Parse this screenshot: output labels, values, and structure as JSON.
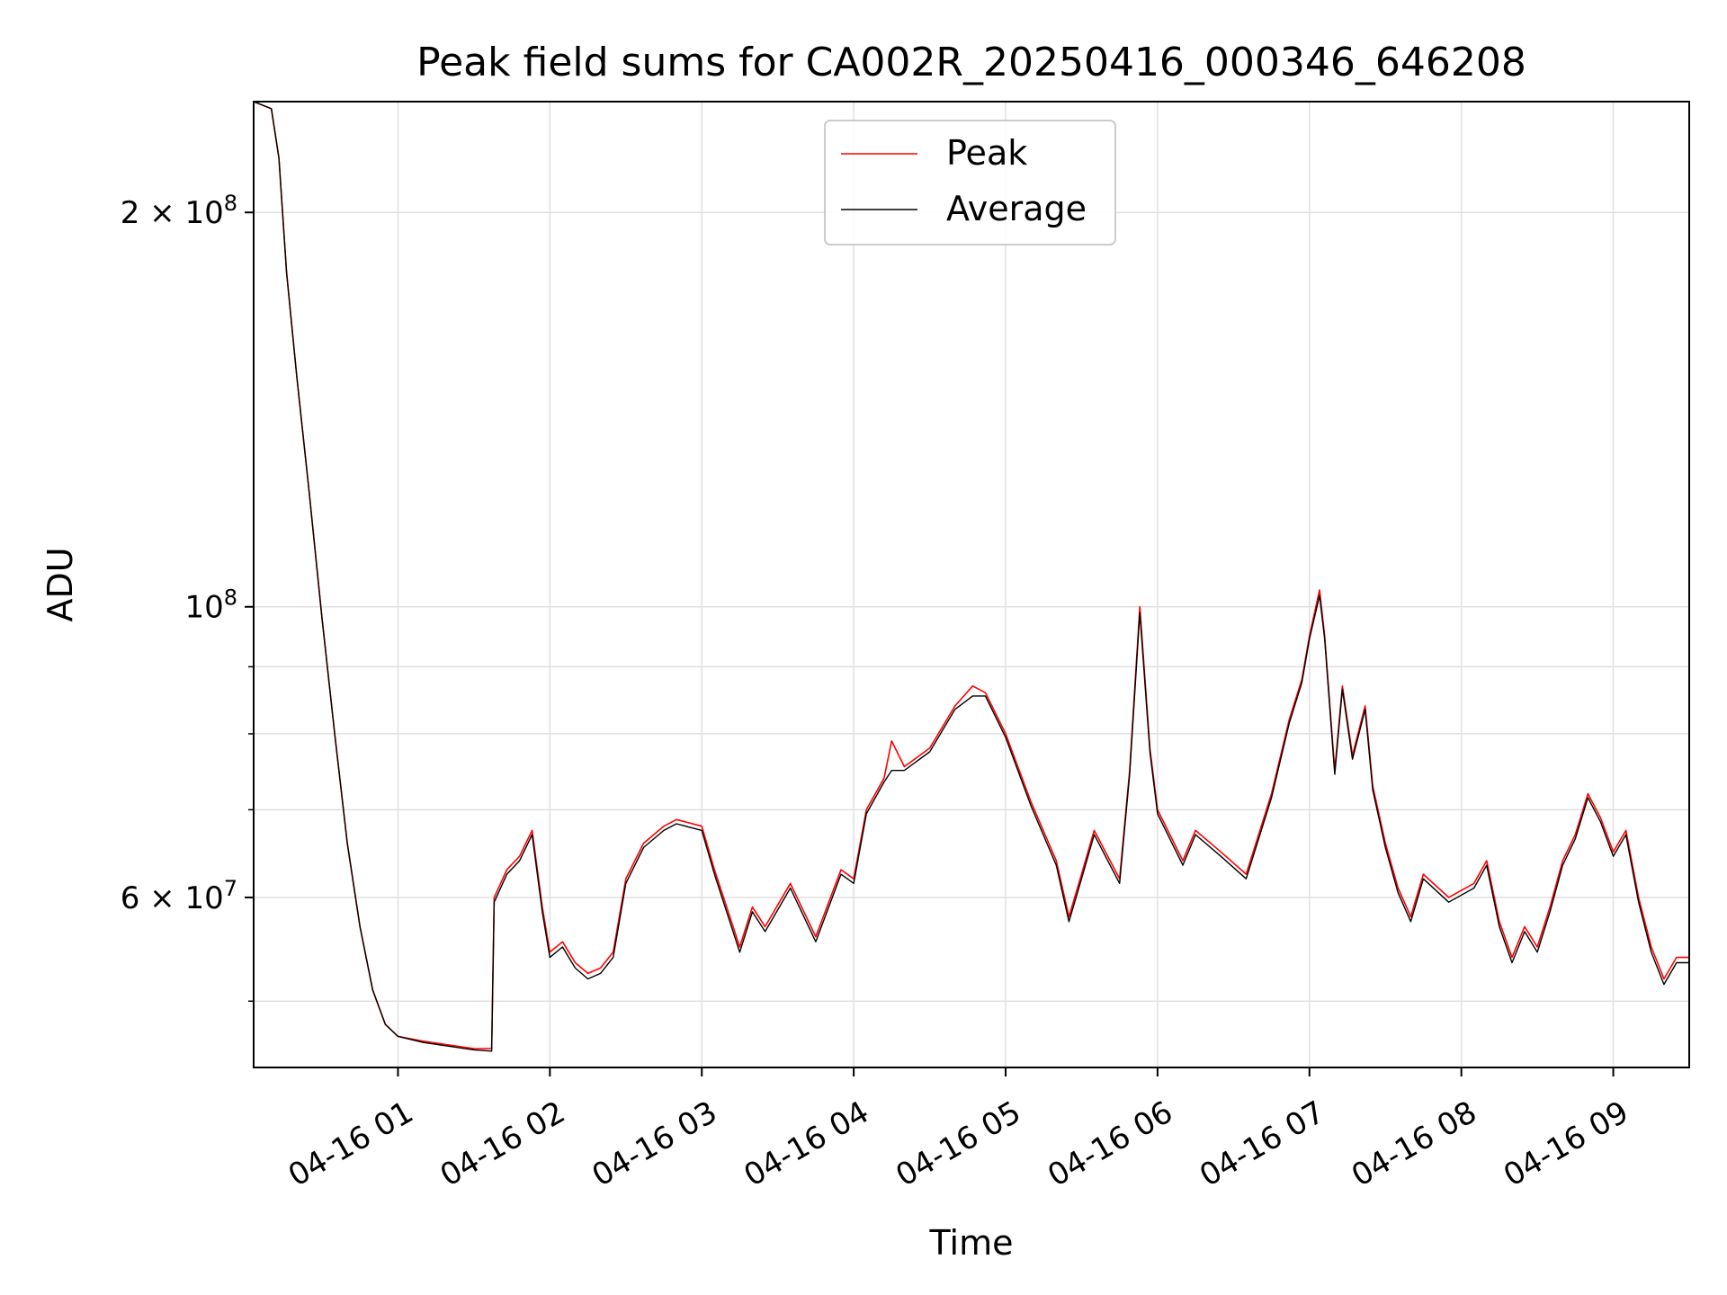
{
  "chart_data": {
    "type": "line",
    "title": "Peak field sums for CA002R_20250416_000346_646208",
    "xlabel": "Time",
    "ylabel": "ADU",
    "yscale": "log",
    "grid": true,
    "legend_position": "upper center",
    "xlim": [
      "2025-04-16 00:03",
      "2025-04-16 09:30"
    ],
    "ylim": [
      44500000,
      243000000
    ],
    "x_ticks": [
      {
        "label": "04-16 01",
        "value": "2025-04-16 01:00"
      },
      {
        "label": "04-16 02",
        "value": "2025-04-16 02:00"
      },
      {
        "label": "04-16 03",
        "value": "2025-04-16 03:00"
      },
      {
        "label": "04-16 04",
        "value": "2025-04-16 04:00"
      },
      {
        "label": "04-16 05",
        "value": "2025-04-16 05:00"
      },
      {
        "label": "04-16 06",
        "value": "2025-04-16 06:00"
      },
      {
        "label": "04-16 07",
        "value": "2025-04-16 07:00"
      },
      {
        "label": "04-16 08",
        "value": "2025-04-16 08:00"
      },
      {
        "label": "04-16 09",
        "value": "2025-04-16 09:00"
      }
    ],
    "y_ticks_major": [
      {
        "value": 60000000,
        "base": "6",
        "exp": "7"
      },
      {
        "value": 100000000,
        "base": "",
        "exp": "8"
      },
      {
        "value": 200000000,
        "base": "2",
        "exp": "8"
      }
    ],
    "y_ticks_minor": [
      50000000,
      70000000,
      80000000,
      90000000
    ],
    "colors": {
      "peak": "#ff0000",
      "average": "#000000",
      "grid": "#e0e0e0"
    },
    "series": [
      {
        "name": "Peak",
        "color": "#ff0000",
        "points": [
          [
            "2025-04-16 00:03",
            243000000
          ],
          [
            "2025-04-16 00:10",
            240000000
          ],
          [
            "2025-04-16 00:13",
            220000000
          ],
          [
            "2025-04-16 00:16",
            180000000
          ],
          [
            "2025-04-16 00:20",
            150000000
          ],
          [
            "2025-04-16 00:25",
            122000000
          ],
          [
            "2025-04-16 00:30",
            98000000
          ],
          [
            "2025-04-16 00:35",
            80000000
          ],
          [
            "2025-04-16 00:40",
            66000000
          ],
          [
            "2025-04-16 00:45",
            57000000
          ],
          [
            "2025-04-16 00:50",
            51000000
          ],
          [
            "2025-04-16 00:55",
            48000000
          ],
          [
            "2025-04-16 01:00",
            47000000
          ],
          [
            "2025-04-16 01:10",
            46600000
          ],
          [
            "2025-04-16 01:20",
            46300000
          ],
          [
            "2025-04-16 01:30",
            46000000
          ],
          [
            "2025-04-16 01:37",
            46000000
          ],
          [
            "2025-04-16 01:38",
            60000000
          ],
          [
            "2025-04-16 01:43",
            63000000
          ],
          [
            "2025-04-16 01:48",
            64500000
          ],
          [
            "2025-04-16 01:53",
            67500000
          ],
          [
            "2025-04-16 01:57",
            59000000
          ],
          [
            "2025-04-16 02:00",
            54500000
          ],
          [
            "2025-04-16 02:05",
            55500000
          ],
          [
            "2025-04-16 02:10",
            53500000
          ],
          [
            "2025-04-16 02:15",
            52500000
          ],
          [
            "2025-04-16 02:20",
            53000000
          ],
          [
            "2025-04-16 02:25",
            54500000
          ],
          [
            "2025-04-16 02:30",
            62000000
          ],
          [
            "2025-04-16 02:37",
            66000000
          ],
          [
            "2025-04-16 02:45",
            68000000
          ],
          [
            "2025-04-16 02:50",
            68800000
          ],
          [
            "2025-04-16 03:00",
            68000000
          ],
          [
            "2025-04-16 03:05",
            63000000
          ],
          [
            "2025-04-16 03:15",
            55000000
          ],
          [
            "2025-04-16 03:20",
            59000000
          ],
          [
            "2025-04-16 03:25",
            57000000
          ],
          [
            "2025-04-16 03:35",
            61500000
          ],
          [
            "2025-04-16 03:45",
            56000000
          ],
          [
            "2025-04-16 03:55",
            63000000
          ],
          [
            "2025-04-16 04:00",
            62000000
          ],
          [
            "2025-04-16 04:05",
            70000000
          ],
          [
            "2025-04-16 04:12",
            74000000
          ],
          [
            "2025-04-16 04:15",
            79000000
          ],
          [
            "2025-04-16 04:20",
            75500000
          ],
          [
            "2025-04-16 04:30",
            78000000
          ],
          [
            "2025-04-16 04:40",
            84000000
          ],
          [
            "2025-04-16 04:47",
            87000000
          ],
          [
            "2025-04-16 04:52",
            86000000
          ],
          [
            "2025-04-16 05:00",
            80000000
          ],
          [
            "2025-04-16 05:10",
            71000000
          ],
          [
            "2025-04-16 05:20",
            64000000
          ],
          [
            "2025-04-16 05:25",
            58000000
          ],
          [
            "2025-04-16 05:30",
            62500000
          ],
          [
            "2025-04-16 05:35",
            67500000
          ],
          [
            "2025-04-16 05:45",
            62000000
          ],
          [
            "2025-04-16 05:49",
            75000000
          ],
          [
            "2025-04-16 05:53",
            100000000
          ],
          [
            "2025-04-16 05:57",
            78000000
          ],
          [
            "2025-04-16 06:00",
            70000000
          ],
          [
            "2025-04-16 06:10",
            64000000
          ],
          [
            "2025-04-16 06:15",
            67500000
          ],
          [
            "2025-04-16 06:25",
            65000000
          ],
          [
            "2025-04-16 06:35",
            62500000
          ],
          [
            "2025-04-16 06:45",
            72000000
          ],
          [
            "2025-04-16 06:52",
            82000000
          ],
          [
            "2025-04-16 06:57",
            88000000
          ],
          [
            "2025-04-16 07:00",
            95000000
          ],
          [
            "2025-04-16 07:04",
            103000000
          ],
          [
            "2025-04-16 07:06",
            95000000
          ],
          [
            "2025-04-16 07:10",
            75000000
          ],
          [
            "2025-04-16 07:13",
            87000000
          ],
          [
            "2025-04-16 07:17",
            77000000
          ],
          [
            "2025-04-16 07:22",
            84000000
          ],
          [
            "2025-04-16 07:25",
            73000000
          ],
          [
            "2025-04-16 07:30",
            66000000
          ],
          [
            "2025-04-16 07:35",
            61000000
          ],
          [
            "2025-04-16 07:40",
            58000000
          ],
          [
            "2025-04-16 07:45",
            62500000
          ],
          [
            "2025-04-16 07:55",
            60000000
          ],
          [
            "2025-04-16 08:05",
            61500000
          ],
          [
            "2025-04-16 08:10",
            64000000
          ],
          [
            "2025-04-16 08:15",
            57500000
          ],
          [
            "2025-04-16 08:20",
            54000000
          ],
          [
            "2025-04-16 08:25",
            57000000
          ],
          [
            "2025-04-16 08:30",
            55000000
          ],
          [
            "2025-04-16 08:35",
            59000000
          ],
          [
            "2025-04-16 08:40",
            64000000
          ],
          [
            "2025-04-16 08:45",
            67000000
          ],
          [
            "2025-04-16 08:50",
            72000000
          ],
          [
            "2025-04-16 08:55",
            69000000
          ],
          [
            "2025-04-16 09:00",
            65000000
          ],
          [
            "2025-04-16 09:05",
            67500000
          ],
          [
            "2025-04-16 09:10",
            60000000
          ],
          [
            "2025-04-16 09:15",
            55000000
          ],
          [
            "2025-04-16 09:20",
            52000000
          ],
          [
            "2025-04-16 09:25",
            54000000
          ],
          [
            "2025-04-16 09:30",
            54000000
          ]
        ]
      },
      {
        "name": "Average",
        "color": "#000000",
        "points": [
          [
            "2025-04-16 00:03",
            243000000
          ],
          [
            "2025-04-16 00:10",
            240000000
          ],
          [
            "2025-04-16 00:13",
            220000000
          ],
          [
            "2025-04-16 00:16",
            180000000
          ],
          [
            "2025-04-16 00:20",
            150000000
          ],
          [
            "2025-04-16 00:25",
            122000000
          ],
          [
            "2025-04-16 00:30",
            98000000
          ],
          [
            "2025-04-16 00:35",
            80000000
          ],
          [
            "2025-04-16 00:40",
            66000000
          ],
          [
            "2025-04-16 00:45",
            57000000
          ],
          [
            "2025-04-16 00:50",
            51000000
          ],
          [
            "2025-04-16 00:55",
            48000000
          ],
          [
            "2025-04-16 01:00",
            47000000
          ],
          [
            "2025-04-16 01:10",
            46500000
          ],
          [
            "2025-04-16 01:20",
            46200000
          ],
          [
            "2025-04-16 01:30",
            45900000
          ],
          [
            "2025-04-16 01:37",
            45800000
          ],
          [
            "2025-04-16 01:38",
            59500000
          ],
          [
            "2025-04-16 01:43",
            62500000
          ],
          [
            "2025-04-16 01:48",
            64000000
          ],
          [
            "2025-04-16 01:53",
            67000000
          ],
          [
            "2025-04-16 01:57",
            58500000
          ],
          [
            "2025-04-16 02:00",
            54000000
          ],
          [
            "2025-04-16 02:05",
            55000000
          ],
          [
            "2025-04-16 02:10",
            53000000
          ],
          [
            "2025-04-16 02:15",
            52000000
          ],
          [
            "2025-04-16 02:20",
            52500000
          ],
          [
            "2025-04-16 02:25",
            54000000
          ],
          [
            "2025-04-16 02:30",
            61500000
          ],
          [
            "2025-04-16 02:37",
            65500000
          ],
          [
            "2025-04-16 02:45",
            67500000
          ],
          [
            "2025-04-16 02:50",
            68300000
          ],
          [
            "2025-04-16 03:00",
            67500000
          ],
          [
            "2025-04-16 03:05",
            62500000
          ],
          [
            "2025-04-16 03:15",
            54500000
          ],
          [
            "2025-04-16 03:20",
            58500000
          ],
          [
            "2025-04-16 03:25",
            56500000
          ],
          [
            "2025-04-16 03:35",
            61000000
          ],
          [
            "2025-04-16 03:45",
            55500000
          ],
          [
            "2025-04-16 03:55",
            62500000
          ],
          [
            "2025-04-16 04:00",
            61500000
          ],
          [
            "2025-04-16 04:05",
            69500000
          ],
          [
            "2025-04-16 04:12",
            73500000
          ],
          [
            "2025-04-16 04:15",
            75000000
          ],
          [
            "2025-04-16 04:20",
            75000000
          ],
          [
            "2025-04-16 04:30",
            77500000
          ],
          [
            "2025-04-16 04:40",
            83500000
          ],
          [
            "2025-04-16 04:47",
            85500000
          ],
          [
            "2025-04-16 04:52",
            85500000
          ],
          [
            "2025-04-16 05:00",
            79500000
          ],
          [
            "2025-04-16 05:10",
            70500000
          ],
          [
            "2025-04-16 05:20",
            63500000
          ],
          [
            "2025-04-16 05:25",
            57500000
          ],
          [
            "2025-04-16 05:30",
            62000000
          ],
          [
            "2025-04-16 05:35",
            67000000
          ],
          [
            "2025-04-16 05:45",
            61500000
          ],
          [
            "2025-04-16 05:49",
            74500000
          ],
          [
            "2025-04-16 05:53",
            99000000
          ],
          [
            "2025-04-16 05:57",
            77500000
          ],
          [
            "2025-04-16 06:00",
            69500000
          ],
          [
            "2025-04-16 06:10",
            63500000
          ],
          [
            "2025-04-16 06:15",
            67000000
          ],
          [
            "2025-04-16 06:25",
            64500000
          ],
          [
            "2025-04-16 06:35",
            62000000
          ],
          [
            "2025-04-16 06:45",
            71500000
          ],
          [
            "2025-04-16 06:52",
            81500000
          ],
          [
            "2025-04-16 06:57",
            87500000
          ],
          [
            "2025-04-16 07:00",
            94500000
          ],
          [
            "2025-04-16 07:04",
            102000000
          ],
          [
            "2025-04-16 07:06",
            94500000
          ],
          [
            "2025-04-16 07:10",
            74500000
          ],
          [
            "2025-04-16 07:13",
            86500000
          ],
          [
            "2025-04-16 07:17",
            76500000
          ],
          [
            "2025-04-16 07:22",
            83500000
          ],
          [
            "2025-04-16 07:25",
            72500000
          ],
          [
            "2025-04-16 07:30",
            65500000
          ],
          [
            "2025-04-16 07:35",
            60500000
          ],
          [
            "2025-04-16 07:40",
            57500000
          ],
          [
            "2025-04-16 07:45",
            62000000
          ],
          [
            "2025-04-16 07:55",
            59500000
          ],
          [
            "2025-04-16 08:05",
            61000000
          ],
          [
            "2025-04-16 08:10",
            63500000
          ],
          [
            "2025-04-16 08:15",
            57000000
          ],
          [
            "2025-04-16 08:20",
            53500000
          ],
          [
            "2025-04-16 08:25",
            56500000
          ],
          [
            "2025-04-16 08:30",
            54500000
          ],
          [
            "2025-04-16 08:35",
            58500000
          ],
          [
            "2025-04-16 08:40",
            63500000
          ],
          [
            "2025-04-16 08:45",
            66500000
          ],
          [
            "2025-04-16 08:50",
            71500000
          ],
          [
            "2025-04-16 08:55",
            68500000
          ],
          [
            "2025-04-16 09:00",
            64500000
          ],
          [
            "2025-04-16 09:05",
            67000000
          ],
          [
            "2025-04-16 09:10",
            59500000
          ],
          [
            "2025-04-16 09:15",
            54500000
          ],
          [
            "2025-04-16 09:20",
            51500000
          ],
          [
            "2025-04-16 09:25",
            53500000
          ],
          [
            "2025-04-16 09:30",
            53500000
          ]
        ]
      }
    ]
  }
}
